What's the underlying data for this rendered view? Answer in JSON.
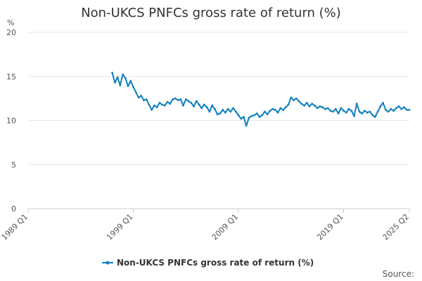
{
  "chart_data": {
    "type": "line",
    "title": "Non-UKCS PNFCs gross rate of return (%)",
    "ylabel": "%",
    "xlabel": "",
    "ylim": [
      0,
      20
    ],
    "yticks": [
      0,
      5,
      10,
      15,
      20
    ],
    "xticks": [
      "1989 Q1",
      "1999 Q1",
      "2009 Q1",
      "2019 Q1",
      "2025 Q2"
    ],
    "xrange": [
      "1989 Q1",
      "2025 Q2"
    ],
    "grid": true,
    "legend_position": "bottom",
    "series": [
      {
        "name": "Non-UKCS PNFCs gross rate of return (%)",
        "color": "#0f7fbf",
        "points": [
          [
            "1997 Q1",
            15.4
          ],
          [
            "1997 Q2",
            14.3
          ],
          [
            "1997 Q3",
            14.9
          ],
          [
            "1997 Q4",
            14.0
          ],
          [
            "1998 Q1",
            15.2
          ],
          [
            "1998 Q2",
            14.8
          ],
          [
            "1998 Q3",
            13.9
          ],
          [
            "1998 Q4",
            14.5
          ],
          [
            "1999 Q1",
            13.8
          ],
          [
            "1999 Q2",
            13.2
          ],
          [
            "1999 Q3",
            12.6
          ],
          [
            "1999 Q4",
            12.8
          ],
          [
            "2000 Q1",
            12.3
          ],
          [
            "2000 Q2",
            12.4
          ],
          [
            "2000 Q3",
            11.8
          ],
          [
            "2000 Q4",
            11.2
          ],
          [
            "2001 Q1",
            11.7
          ],
          [
            "2001 Q2",
            11.5
          ],
          [
            "2001 Q3",
            12.0
          ],
          [
            "2001 Q4",
            11.8
          ],
          [
            "2002 Q1",
            11.7
          ],
          [
            "2002 Q2",
            12.1
          ],
          [
            "2002 Q3",
            11.9
          ],
          [
            "2002 Q4",
            12.4
          ],
          [
            "2003 Q1",
            12.5
          ],
          [
            "2003 Q2",
            12.3
          ],
          [
            "2003 Q3",
            12.4
          ],
          [
            "2003 Q4",
            11.7
          ],
          [
            "2004 Q1",
            12.4
          ],
          [
            "2004 Q2",
            12.2
          ],
          [
            "2004 Q3",
            12.0
          ],
          [
            "2004 Q4",
            11.6
          ],
          [
            "2005 Q1",
            12.2
          ],
          [
            "2005 Q2",
            11.8
          ],
          [
            "2005 Q3",
            11.4
          ],
          [
            "2005 Q4",
            11.8
          ],
          [
            "2006 Q1",
            11.5
          ],
          [
            "2006 Q2",
            11.0
          ],
          [
            "2006 Q3",
            11.7
          ],
          [
            "2006 Q4",
            11.3
          ],
          [
            "2007 Q1",
            10.7
          ],
          [
            "2007 Q2",
            10.8
          ],
          [
            "2007 Q3",
            11.2
          ],
          [
            "2007 Q4",
            10.9
          ],
          [
            "2008 Q1",
            11.3
          ],
          [
            "2008 Q2",
            11.0
          ],
          [
            "2008 Q3",
            11.4
          ],
          [
            "2008 Q4",
            11.0
          ],
          [
            "2009 Q1",
            10.6
          ],
          [
            "2009 Q2",
            10.2
          ],
          [
            "2009 Q3",
            10.4
          ],
          [
            "2009 Q4",
            9.4
          ],
          [
            "2010 Q1",
            10.3
          ],
          [
            "2010 Q2",
            10.5
          ],
          [
            "2010 Q3",
            10.6
          ],
          [
            "2010 Q4",
            10.8
          ],
          [
            "2011 Q1",
            10.4
          ],
          [
            "2011 Q2",
            10.6
          ],
          [
            "2011 Q3",
            11.0
          ],
          [
            "2011 Q4",
            10.7
          ],
          [
            "2012 Q1",
            11.1
          ],
          [
            "2012 Q2",
            11.3
          ],
          [
            "2012 Q3",
            11.2
          ],
          [
            "2012 Q4",
            10.9
          ],
          [
            "2013 Q1",
            11.4
          ],
          [
            "2013 Q2",
            11.2
          ],
          [
            "2013 Q3",
            11.5
          ],
          [
            "2013 Q4",
            11.8
          ],
          [
            "2014 Q1",
            12.6
          ],
          [
            "2014 Q2",
            12.3
          ],
          [
            "2014 Q3",
            12.5
          ],
          [
            "2014 Q4",
            12.2
          ],
          [
            "2015 Q1",
            11.9
          ],
          [
            "2015 Q2",
            11.7
          ],
          [
            "2015 Q3",
            12.0
          ],
          [
            "2015 Q4",
            11.6
          ],
          [
            "2016 Q1",
            11.9
          ],
          [
            "2016 Q2",
            11.7
          ],
          [
            "2016 Q3",
            11.4
          ],
          [
            "2016 Q4",
            11.6
          ],
          [
            "2017 Q1",
            11.5
          ],
          [
            "2017 Q2",
            11.3
          ],
          [
            "2017 Q3",
            11.4
          ],
          [
            "2017 Q4",
            11.1
          ],
          [
            "2018 Q1",
            11.0
          ],
          [
            "2018 Q2",
            11.3
          ],
          [
            "2018 Q3",
            10.8
          ],
          [
            "2018 Q4",
            11.4
          ],
          [
            "2019 Q1",
            11.1
          ],
          [
            "2019 Q2",
            10.9
          ],
          [
            "2019 Q3",
            11.3
          ],
          [
            "2019 Q4",
            11.1
          ],
          [
            "2020 Q1",
            10.5
          ],
          [
            "2020 Q2",
            11.9
          ],
          [
            "2020 Q3",
            11.0
          ],
          [
            "2020 Q4",
            10.8
          ],
          [
            "2021 Q1",
            11.1
          ],
          [
            "2021 Q2",
            10.9
          ],
          [
            "2021 Q3",
            11.0
          ],
          [
            "2021 Q4",
            10.6
          ],
          [
            "2022 Q1",
            10.4
          ],
          [
            "2022 Q2",
            11.0
          ],
          [
            "2022 Q3",
            11.6
          ],
          [
            "2022 Q4",
            12.0
          ],
          [
            "2023 Q1",
            11.2
          ],
          [
            "2023 Q2",
            11.0
          ],
          [
            "2023 Q3",
            11.3
          ],
          [
            "2023 Q4",
            11.1
          ],
          [
            "2024 Q1",
            11.4
          ],
          [
            "2024 Q2",
            11.6
          ],
          [
            "2024 Q3",
            11.3
          ],
          [
            "2024 Q4",
            11.5
          ],
          [
            "2025 Q1",
            11.2
          ],
          [
            "2025 Q2",
            11.2
          ]
        ]
      }
    ]
  },
  "footer": {
    "source_label": "Source:"
  }
}
